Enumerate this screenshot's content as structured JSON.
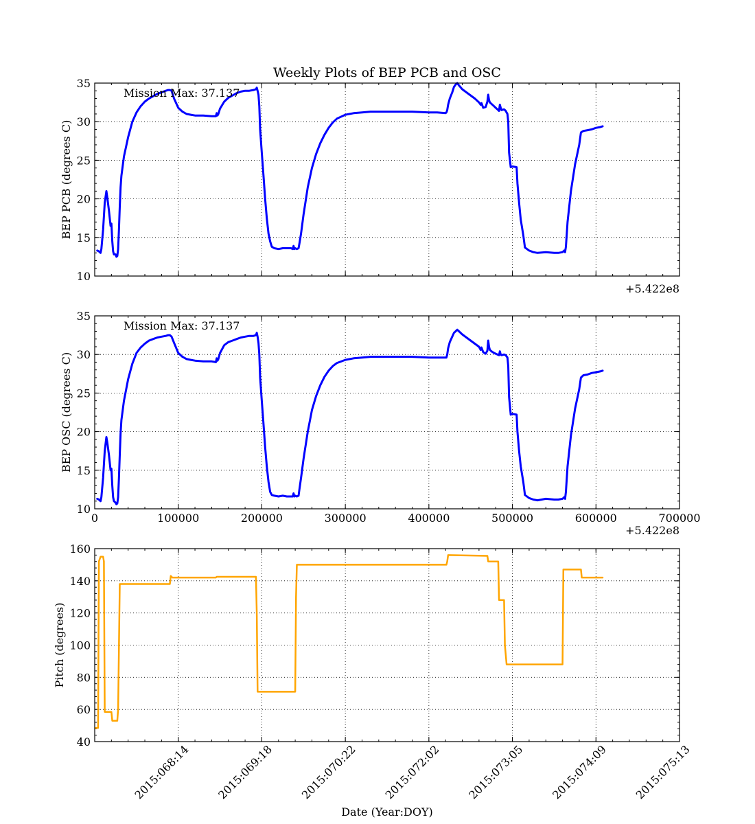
{
  "figure": {
    "title": "Weekly Plots of BEP PCB and OSC",
    "xlabel": "Date (Year:DOY)"
  },
  "chart_data": [
    {
      "type": "line",
      "id": "pcb",
      "title": "Weekly Plots of BEP PCB and OSC",
      "ylabel": "BEP PCB (degrees C)",
      "xlim": [
        0,
        700000
      ],
      "ylim": [
        10,
        35
      ],
      "x_offset_label": "+5.422e8",
      "yticks": [
        10,
        15,
        20,
        25,
        30,
        35
      ],
      "xticks": [
        0,
        100000,
        200000,
        300000,
        400000,
        500000,
        600000,
        700000
      ],
      "show_xtick_labels": false,
      "grid": true,
      "annotation": "Mission Max: 37.137",
      "series": [
        {
          "color": "#0000ff",
          "x": [
            3000,
            5000,
            7000,
            8000,
            10000,
            12000,
            14000,
            15000,
            17000,
            19000,
            20000,
            21000,
            22000,
            23000,
            25000,
            26000,
            27000,
            28000,
            29000,
            30000,
            31000,
            32000,
            35000,
            40000,
            45000,
            50000,
            55000,
            60000,
            65000,
            70000,
            75000,
            80000,
            85000,
            88000,
            90000,
            92000,
            95000,
            100000,
            105000,
            110000,
            115000,
            120000,
            130000,
            140000,
            145000,
            146000,
            147000,
            148000,
            150000,
            155000,
            160000,
            165000,
            170000,
            175000,
            180000,
            185000,
            190000,
            193000,
            194000,
            195000,
            196000,
            197000,
            198000,
            200000,
            202000,
            204000,
            206000,
            208000,
            210000,
            212000,
            215000,
            220000,
            225000,
            230000,
            235000,
            237000,
            238000,
            239000,
            240000,
            242000,
            244000,
            245000,
            247000,
            250000,
            255000,
            260000,
            265000,
            270000,
            275000,
            280000,
            285000,
            290000,
            300000,
            310000,
            320000,
            330000,
            340000,
            360000,
            380000,
            400000,
            410000,
            420000,
            421000,
            422000,
            423000,
            425000,
            428000,
            430000,
            432000,
            434000,
            436000,
            440000,
            445000,
            450000,
            455000,
            460000,
            462000,
            463000,
            465000,
            468000,
            470000,
            471000,
            472000,
            473000,
            475000,
            478000,
            480000,
            482000,
            484000,
            485000,
            486000,
            487000,
            490000,
            492000,
            494000,
            495000,
            496000,
            498000,
            500000,
            505000,
            506000,
            508000,
            510000,
            513000,
            515000,
            520000,
            525000,
            530000,
            540000,
            550000,
            555000,
            560000,
            562000,
            563000,
            564000,
            566000,
            570000,
            575000,
            580000,
            582000,
            585000,
            590000,
            595000,
            600000,
            605000,
            608000
          ],
          "y": [
            13.3,
            13.2,
            13.0,
            13.5,
            16,
            19.5,
            21.0,
            20.2,
            18.5,
            16.5,
            16.8,
            14.5,
            13.2,
            12.8,
            12.8,
            12.5,
            12.6,
            13.5,
            16,
            19,
            21.5,
            23,
            25.5,
            28,
            30,
            31.2,
            32,
            32.6,
            33,
            33.3,
            33.6,
            33.8,
            34.0,
            34.1,
            34.1,
            34.0,
            33.0,
            31.8,
            31.3,
            31.0,
            30.9,
            30.8,
            30.8,
            30.7,
            30.7,
            31.1,
            30.8,
            31.0,
            31.7,
            32.6,
            33.1,
            33.4,
            33.7,
            33.9,
            34.0,
            34.0,
            34.1,
            34.2,
            34.4,
            34.0,
            33.5,
            32,
            29,
            26,
            23,
            20,
            17.5,
            15.5,
            14.5,
            13.8,
            13.6,
            13.5,
            13.6,
            13.6,
            13.6,
            13.5,
            13.9,
            13.5,
            13.6,
            13.5,
            13.6,
            14.2,
            15.5,
            18,
            21.5,
            24,
            25.8,
            27.2,
            28.3,
            29.2,
            29.9,
            30.4,
            30.9,
            31.1,
            31.2,
            31.3,
            31.3,
            31.3,
            31.3,
            31.2,
            31.2,
            31.1,
            31.2,
            31.5,
            32.2,
            33.0,
            33.8,
            34.5,
            34.8,
            35.0,
            34.7,
            34.2,
            33.8,
            33.4,
            33.0,
            32.5,
            32.2,
            32.4,
            31.8,
            31.9,
            32.6,
            33.5,
            32.8,
            32.5,
            32.3,
            32.0,
            31.8,
            31.6,
            31.4,
            32.2,
            31.8,
            31.5,
            31.6,
            31.4,
            31.0,
            30,
            26,
            24.1,
            24.2,
            24.1,
            22,
            19.5,
            17.3,
            15.3,
            13.7,
            13.3,
            13.1,
            13.0,
            13.1,
            13.0,
            13.0,
            13.1,
            13.3,
            13.1,
            13.8,
            17,
            21,
            24.5,
            27,
            28.6,
            28.8,
            28.9,
            29.0,
            29.2,
            29.3,
            29.4
          ]
        }
      ]
    },
    {
      "type": "line",
      "id": "osc",
      "ylabel": "BEP OSC (degrees C)",
      "xlim": [
        0,
        700000
      ],
      "ylim": [
        10,
        35
      ],
      "x_offset_label": "+5.422e8",
      "yticks": [
        10,
        15,
        20,
        25,
        30,
        35
      ],
      "xticks": [
        0,
        100000,
        200000,
        300000,
        400000,
        500000,
        600000,
        700000
      ],
      "xtick_labels": [
        "0",
        "100000",
        "200000",
        "300000",
        "400000",
        "500000",
        "600000",
        "700000"
      ],
      "show_xtick_labels": true,
      "grid": true,
      "annotation": "Mission Max: 37.137",
      "series": [
        {
          "color": "#0000ff",
          "x": [
            3000,
            5000,
            7000,
            8000,
            10000,
            12000,
            14000,
            15000,
            17000,
            19000,
            20000,
            21000,
            22000,
            23000,
            25000,
            26000,
            27000,
            28000,
            29000,
            30000,
            31000,
            32000,
            35000,
            40000,
            45000,
            50000,
            55000,
            60000,
            65000,
            70000,
            75000,
            80000,
            85000,
            88000,
            90000,
            92000,
            95000,
            100000,
            105000,
            110000,
            115000,
            120000,
            130000,
            140000,
            145000,
            146000,
            147000,
            148000,
            150000,
            155000,
            160000,
            165000,
            170000,
            175000,
            180000,
            185000,
            190000,
            193000,
            194000,
            195000,
            196000,
            197000,
            198000,
            200000,
            202000,
            204000,
            206000,
            208000,
            210000,
            212000,
            215000,
            220000,
            225000,
            230000,
            235000,
            237000,
            238000,
            239000,
            240000,
            242000,
            244000,
            245000,
            247000,
            250000,
            255000,
            260000,
            265000,
            270000,
            275000,
            280000,
            285000,
            290000,
            300000,
            310000,
            320000,
            330000,
            340000,
            360000,
            380000,
            400000,
            410000,
            420000,
            421000,
            422000,
            423000,
            425000,
            428000,
            430000,
            432000,
            434000,
            436000,
            440000,
            445000,
            450000,
            455000,
            460000,
            462000,
            463000,
            465000,
            468000,
            470000,
            471000,
            472000,
            473000,
            475000,
            478000,
            480000,
            482000,
            484000,
            485000,
            486000,
            487000,
            490000,
            492000,
            494000,
            495000,
            496000,
            498000,
            500000,
            505000,
            506000,
            508000,
            510000,
            513000,
            515000,
            520000,
            525000,
            530000,
            540000,
            550000,
            555000,
            560000,
            562000,
            563000,
            564000,
            566000,
            570000,
            575000,
            580000,
            582000,
            585000,
            590000,
            595000,
            600000,
            605000,
            608000
          ],
          "y": [
            11.3,
            11.2,
            11.0,
            11.5,
            14,
            17.5,
            19.3,
            18.6,
            17.0,
            15,
            15.2,
            13.0,
            11.5,
            11.0,
            10.8,
            10.6,
            10.7,
            11.5,
            14,
            17,
            19.8,
            21.5,
            24,
            26.8,
            28.8,
            30.2,
            30.9,
            31.4,
            31.8,
            32.0,
            32.2,
            32.3,
            32.4,
            32.5,
            32.5,
            32.3,
            31.5,
            30.2,
            29.7,
            29.4,
            29.3,
            29.2,
            29.1,
            29.1,
            29.0,
            29.5,
            29.2,
            29.4,
            30.2,
            31.2,
            31.6,
            31.8,
            32.0,
            32.2,
            32.3,
            32.4,
            32.4,
            32.5,
            32.8,
            32.3,
            31.5,
            30,
            27,
            24,
            21,
            18,
            15.5,
            13.5,
            12.2,
            11.8,
            11.7,
            11.6,
            11.7,
            11.6,
            11.6,
            11.6,
            12.0,
            11.6,
            11.7,
            11.6,
            11.7,
            12.5,
            14,
            16.5,
            20,
            22.8,
            24.6,
            26,
            27.1,
            27.9,
            28.5,
            28.9,
            29.3,
            29.5,
            29.6,
            29.7,
            29.7,
            29.7,
            29.7,
            29.6,
            29.6,
            29.6,
            29.6,
            30.0,
            30.8,
            31.6,
            32.3,
            32.8,
            33.0,
            33.2,
            33.0,
            32.6,
            32.2,
            31.8,
            31.4,
            31.0,
            30.6,
            30.9,
            30.3,
            30.1,
            30.5,
            31.8,
            31.0,
            30.6,
            30.4,
            30.2,
            30.1,
            30.0,
            29.9,
            30.4,
            30.0,
            29.9,
            30.0,
            29.9,
            29.6,
            28.5,
            24.5,
            22.2,
            22.3,
            22.2,
            20,
            17.5,
            15.5,
            13.5,
            11.8,
            11.4,
            11.2,
            11.1,
            11.3,
            11.2,
            11.2,
            11.3,
            11.5,
            11.3,
            12.2,
            15.5,
            19.5,
            23,
            25.5,
            27.0,
            27.3,
            27.4,
            27.6,
            27.7,
            27.8,
            27.9
          ]
        }
      ]
    },
    {
      "type": "line",
      "id": "pitch",
      "ylabel": "Pitch (degrees)",
      "xlabel": "Date (Year:DOY)",
      "xlim": [
        0,
        700000
      ],
      "ylim": [
        40,
        160
      ],
      "yticks": [
        40,
        60,
        80,
        100,
        120,
        140,
        160
      ],
      "xticks": [
        100000,
        200000,
        300000,
        400000,
        500000,
        600000,
        700000
      ],
      "xtick_labels": [
        "2015:068:14",
        "2015:069:18",
        "2015:070:22",
        "2015:072:02",
        "2015:073:05",
        "2015:074:09",
        "2015:075:13"
      ],
      "grid": true,
      "series": [
        {
          "color": "#ffa500",
          "x": [
            1000,
            4000,
            5000,
            7000,
            10000,
            11000,
            12000,
            14000,
            20000,
            21000,
            27000,
            28000,
            30000,
            90000,
            91000,
            93000,
            145000,
            146000,
            193000,
            194000,
            195000,
            240000,
            241000,
            242000,
            421000,
            422000,
            423000,
            470000,
            471000,
            483000,
            484000,
            486000,
            490000,
            491000,
            493000,
            560000,
            561000,
            582000,
            583000,
            608000
          ],
          "y": [
            48.5,
            48.5,
            152,
            155,
            155,
            152,
            58.5,
            58.5,
            58.5,
            53,
            53,
            60,
            138,
            138,
            143,
            142,
            142,
            142.5,
            142.5,
            120,
            71,
            71,
            130,
            150,
            150,
            152,
            156,
            155.5,
            152,
            152,
            128,
            128,
            128,
            100,
            88,
            88,
            147,
            147,
            142,
            142
          ]
        }
      ]
    }
  ]
}
